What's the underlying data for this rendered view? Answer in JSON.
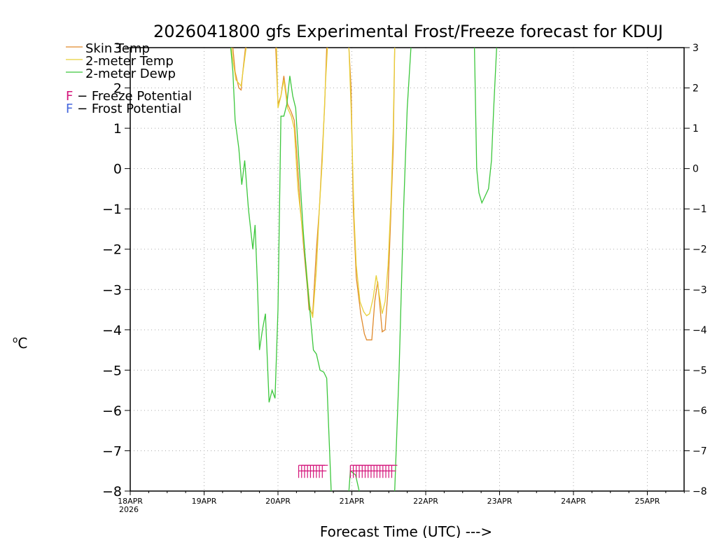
{
  "chart_data": {
    "type": "line",
    "title": "2026041800 gfs Experimental Frost/Freeze forecast for KDUJ",
    "xlabel": "Forecast Time (UTC) --->",
    "ylabel_unit": "C",
    "ylabel_degree": "o",
    "ylim": [
      -8,
      3
    ],
    "xlim": [
      0,
      7.5
    ],
    "yticks": [
      3,
      2,
      1,
      0,
      -1,
      -2,
      -3,
      -4,
      -5,
      -6,
      -7,
      -8
    ],
    "yticklabels": [
      "3",
      "2",
      "1",
      "0",
      "−1",
      "−2",
      "−3",
      "−4",
      "−5",
      "−6",
      "−7",
      "−8"
    ],
    "xticks": [
      0,
      1,
      2,
      3,
      4,
      5,
      6,
      7
    ],
    "xticklabels": [
      "18APR",
      "19APR",
      "20APR",
      "21APR",
      "22APR",
      "23APR",
      "24APR",
      "25APR"
    ],
    "x_year_label": "2026",
    "grid": true,
    "series": [
      {
        "name": "Skin Temp",
        "color": "#e08a2c",
        "points": [
          [
            1.39,
            3
          ],
          [
            1.42,
            2.4
          ],
          [
            1.47,
            2.0
          ],
          [
            1.5,
            1.95
          ],
          [
            1.53,
            2.5
          ],
          [
            1.56,
            3
          ],
          [
            1.97,
            3
          ],
          [
            2.0,
            1.6
          ],
          [
            2.04,
            1.8
          ],
          [
            2.08,
            2.3
          ],
          [
            2.13,
            1.6
          ],
          [
            2.18,
            1.4
          ],
          [
            2.22,
            1.2
          ],
          [
            2.25,
            0.5
          ],
          [
            2.3,
            -0.9
          ],
          [
            2.35,
            -2.0
          ],
          [
            2.4,
            -3.0
          ],
          [
            2.42,
            -3.5
          ],
          [
            2.47,
            -3.6
          ],
          [
            2.52,
            -2.0
          ],
          [
            2.56,
            -1.0
          ],
          [
            2.6,
            0.4
          ],
          [
            2.63,
            1.5
          ],
          [
            2.66,
            3
          ],
          [
            2.96,
            3
          ],
          [
            2.99,
            2.0
          ],
          [
            3.02,
            -1.0
          ],
          [
            3.06,
            -2.7
          ],
          [
            3.12,
            -3.6
          ],
          [
            3.17,
            -4.1
          ],
          [
            3.2,
            -4.25
          ],
          [
            3.27,
            -4.25
          ],
          [
            3.31,
            -3.3
          ],
          [
            3.35,
            -2.8
          ],
          [
            3.37,
            -3.2
          ],
          [
            3.41,
            -4.05
          ],
          [
            3.45,
            -4.0
          ],
          [
            3.49,
            -3.0
          ],
          [
            3.52,
            -1.5
          ],
          [
            3.56,
            0.5
          ],
          [
            3.58,
            3
          ]
        ]
      },
      {
        "name": "2-meter Temp",
        "color": "#e8d03a",
        "points": [
          [
            1.37,
            3
          ],
          [
            1.39,
            2.7
          ],
          [
            1.43,
            2.2
          ],
          [
            1.5,
            2.05
          ],
          [
            1.54,
            2.6
          ],
          [
            1.57,
            3
          ],
          [
            1.98,
            3
          ],
          [
            2.0,
            1.5
          ],
          [
            2.04,
            1.8
          ],
          [
            2.08,
            2.2
          ],
          [
            2.13,
            1.5
          ],
          [
            2.18,
            1.3
          ],
          [
            2.22,
            1.0
          ],
          [
            2.27,
            -0.5
          ],
          [
            2.33,
            -1.5
          ],
          [
            2.38,
            -2.4
          ],
          [
            2.43,
            -3.4
          ],
          [
            2.47,
            -3.7
          ],
          [
            2.52,
            -2.5
          ],
          [
            2.56,
            -1.0
          ],
          [
            2.6,
            0.2
          ],
          [
            2.64,
            2.0
          ],
          [
            2.67,
            3
          ],
          [
            2.96,
            3
          ],
          [
            2.99,
            1.5
          ],
          [
            3.03,
            -1.2
          ],
          [
            3.06,
            -2.4
          ],
          [
            3.11,
            -3.3
          ],
          [
            3.16,
            -3.55
          ],
          [
            3.2,
            -3.65
          ],
          [
            3.24,
            -3.6
          ],
          [
            3.29,
            -3.2
          ],
          [
            3.33,
            -2.65
          ],
          [
            3.36,
            -3.0
          ],
          [
            3.41,
            -3.6
          ],
          [
            3.45,
            -3.3
          ],
          [
            3.49,
            -2.4
          ],
          [
            3.53,
            -0.8
          ],
          [
            3.56,
            1.0
          ],
          [
            3.58,
            3
          ]
        ]
      },
      {
        "name": "2-meter Dewp",
        "color": "#3cc73c",
        "points": [
          [
            1.36,
            3
          ],
          [
            1.39,
            2.4
          ],
          [
            1.42,
            1.2
          ],
          [
            1.47,
            0.5
          ],
          [
            1.51,
            -0.4
          ],
          [
            1.55,
            0.2
          ],
          [
            1.6,
            -1.0
          ],
          [
            1.66,
            -2.0
          ],
          [
            1.69,
            -1.4
          ],
          [
            1.72,
            -2.8
          ],
          [
            1.75,
            -4.5
          ],
          [
            1.79,
            -4.0
          ],
          [
            1.83,
            -3.6
          ],
          [
            1.88,
            -5.8
          ],
          [
            1.92,
            -5.5
          ],
          [
            1.96,
            -5.7
          ],
          [
            2.0,
            -3.5
          ],
          [
            2.04,
            1.3
          ],
          [
            2.08,
            1.3
          ],
          [
            2.12,
            1.6
          ],
          [
            2.16,
            2.3
          ],
          [
            2.2,
            1.8
          ],
          [
            2.24,
            1.5
          ],
          [
            2.28,
            0.3
          ],
          [
            2.34,
            -1.5
          ],
          [
            2.39,
            -2.7
          ],
          [
            2.43,
            -3.5
          ],
          [
            2.48,
            -4.5
          ],
          [
            2.52,
            -4.6
          ],
          [
            2.57,
            -5.0
          ],
          [
            2.62,
            -5.05
          ],
          [
            2.66,
            -5.2
          ],
          [
            2.72,
            -8
          ],
          [
            2.96,
            -8
          ],
          [
            2.98,
            -7.5
          ],
          [
            3.05,
            -7.6
          ],
          [
            3.1,
            -8
          ],
          [
            3.58,
            -8
          ],
          [
            3.64,
            -5.0
          ],
          [
            3.7,
            -1.0
          ],
          [
            3.75,
            1.5
          ],
          [
            3.8,
            3
          ],
          [
            4.66,
            3
          ],
          [
            4.69,
            0
          ],
          [
            4.72,
            -0.6
          ],
          [
            4.76,
            -0.85
          ],
          [
            4.8,
            -0.7
          ],
          [
            4.85,
            -0.5
          ],
          [
            4.89,
            0.2
          ],
          [
            4.92,
            1.5
          ],
          [
            4.96,
            3
          ]
        ]
      }
    ],
    "markers": [
      {
        "name": "freeze",
        "symbol": "F",
        "color": "#d4147a",
        "times": [
          2.28,
          2.32,
          2.36,
          2.4,
          2.44,
          2.48,
          2.52,
          2.56,
          2.6,
          2.98,
          3.02,
          3.06,
          3.1,
          3.14,
          3.18,
          3.22,
          3.26,
          3.3,
          3.34,
          3.38,
          3.42,
          3.46,
          3.5,
          3.54
        ],
        "y": -7.5
      },
      {
        "name": "frost",
        "symbol": "F",
        "color": "#4466dd",
        "times": [],
        "y": -7.6
      }
    ],
    "legend": [
      {
        "label": "Skin Temp",
        "color": "#e08a2c"
      },
      {
        "label": "2-meter Temp",
        "color": "#e8d03a"
      },
      {
        "label": "2-meter Dewp",
        "color": "#3cc73c"
      },
      {
        "label": "F − Freeze Potential",
        "color": "#d4147a"
      },
      {
        "label": "F − Frost Potential",
        "color": "#4466dd"
      }
    ],
    "legend_placement": "top-left"
  }
}
